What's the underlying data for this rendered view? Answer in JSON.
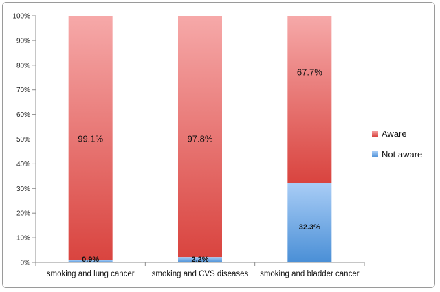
{
  "chart_data": {
    "type": "bar",
    "stacked": true,
    "percent_axis": true,
    "categories": [
      "smoking and lung cancer",
      "smoking and CVS diseases",
      "smoking and bladder cancer"
    ],
    "series": [
      {
        "name": "Not aware",
        "values": [
          0.9,
          2.2,
          32.3
        ],
        "labels": [
          "0.9%",
          "2.2%",
          "32.3%"
        ],
        "color": "#5b9bd5"
      },
      {
        "name": "Aware",
        "values": [
          99.1,
          97.8,
          67.7
        ],
        "labels": [
          "99.1%",
          "97.8%",
          "67.7%"
        ],
        "color": "#e05a57"
      }
    ],
    "y_ticks": [
      "0%",
      "10%",
      "20%",
      "30%",
      "40%",
      "50%",
      "60%",
      "70%",
      "80%",
      "90%",
      "100%"
    ],
    "ylim": [
      0,
      100
    ],
    "grid": false,
    "legend_position": "right",
    "legend": [
      "Aware",
      "Not aware"
    ]
  }
}
